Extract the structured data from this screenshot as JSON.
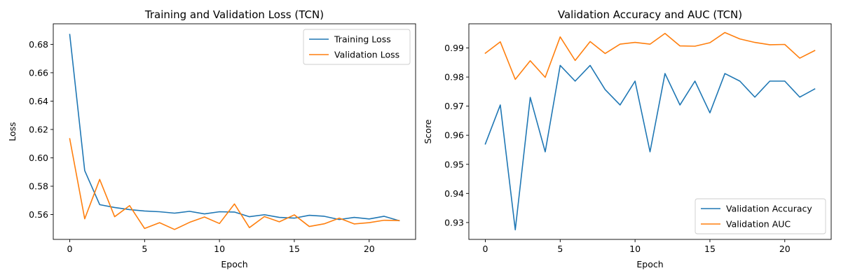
{
  "chart_data": [
    {
      "type": "line",
      "title": "Training and Validation Loss (TCN)",
      "xlabel": "Epoch",
      "ylabel": "Loss",
      "xlim": [
        -1.1,
        23.1
      ],
      "ylim": [
        0.5425,
        0.6945
      ],
      "xticks": [
        0,
        5,
        10,
        15,
        20
      ],
      "yticks": [
        0.56,
        0.58,
        0.6,
        0.62,
        0.64,
        0.66,
        0.68
      ],
      "ytick_labels": [
        "0.56",
        "0.58",
        "0.60",
        "0.62",
        "0.64",
        "0.66",
        "0.68"
      ],
      "grid": false,
      "legend_position": "upper right",
      "x": [
        0,
        1,
        2,
        3,
        4,
        5,
        6,
        7,
        8,
        9,
        10,
        11,
        12,
        13,
        14,
        15,
        16,
        17,
        18,
        19,
        20,
        21,
        22
      ],
      "series": [
        {
          "name": "Training Loss",
          "color": "#1f77b4",
          "values": [
            0.687,
            0.591,
            0.567,
            0.565,
            0.5635,
            0.5625,
            0.562,
            0.561,
            0.5623,
            0.5605,
            0.562,
            0.5618,
            0.5585,
            0.5599,
            0.558,
            0.5575,
            0.5595,
            0.5588,
            0.5565,
            0.558,
            0.5569,
            0.5588,
            0.5557
          ]
        },
        {
          "name": "Validation Loss",
          "color": "#ff7f0e",
          "values": [
            0.6135,
            0.557,
            0.5848,
            0.5585,
            0.5663,
            0.5502,
            0.5543,
            0.5495,
            0.5545,
            0.5583,
            0.5537,
            0.5675,
            0.5508,
            0.5586,
            0.5549,
            0.5598,
            0.5516,
            0.5535,
            0.5575,
            0.5534,
            0.5543,
            0.556,
            0.5558
          ]
        }
      ]
    },
    {
      "type": "line",
      "title": "Validation Accuracy and AUC (TCN)",
      "xlabel": "Epoch",
      "ylabel": "Score",
      "xlim": [
        -1.1,
        23.1
      ],
      "ylim": [
        0.9242,
        0.9983
      ],
      "xticks": [
        0,
        5,
        10,
        15,
        20
      ],
      "yticks": [
        0.93,
        0.94,
        0.95,
        0.96,
        0.97,
        0.98,
        0.99
      ],
      "ytick_labels": [
        "0.93",
        "0.94",
        "0.95",
        "0.96",
        "0.97",
        "0.98",
        "0.99"
      ],
      "grid": false,
      "legend_position": "lower right",
      "x": [
        0,
        1,
        2,
        3,
        4,
        5,
        6,
        7,
        8,
        9,
        10,
        11,
        12,
        13,
        14,
        15,
        16,
        17,
        18,
        19,
        20,
        21,
        22
      ],
      "series": [
        {
          "name": "Validation Accuracy",
          "color": "#1f77b4",
          "values": [
            0.957,
            0.9704,
            0.9275,
            0.973,
            0.9543,
            0.984,
            0.9786,
            0.984,
            0.9757,
            0.9704,
            0.9786,
            0.9543,
            0.9812,
            0.9704,
            0.9786,
            0.9677,
            0.9812,
            0.9786,
            0.9731,
            0.9786,
            0.9786,
            0.9731,
            0.9759
          ]
        },
        {
          "name": "Validation AUC",
          "color": "#ff7f0e",
          "values": [
            0.9882,
            0.9921,
            0.9792,
            0.9856,
            0.9799,
            0.9938,
            0.9857,
            0.9922,
            0.9881,
            0.9913,
            0.9919,
            0.9913,
            0.995,
            0.9907,
            0.9906,
            0.9918,
            0.9953,
            0.9931,
            0.9919,
            0.9911,
            0.9912,
            0.9865,
            0.9891
          ]
        }
      ]
    }
  ]
}
